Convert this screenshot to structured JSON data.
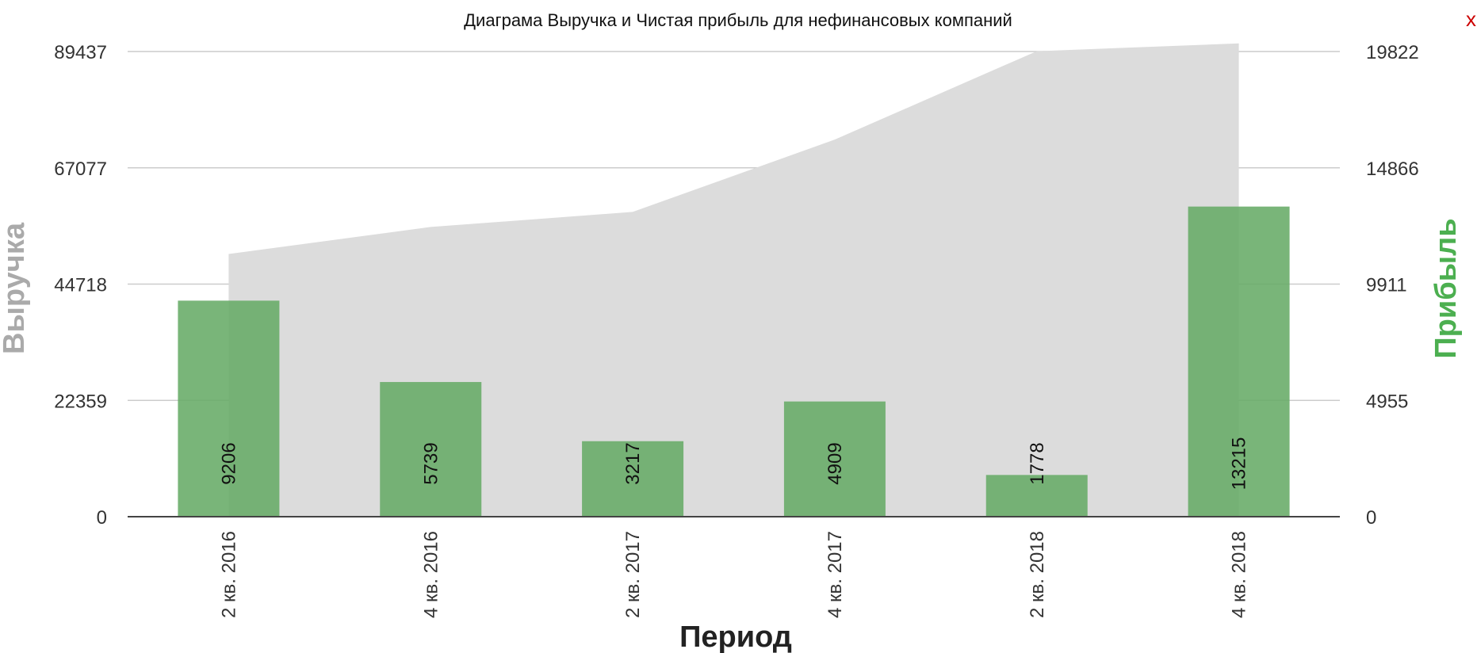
{
  "close_label": "x",
  "chart_data": {
    "type": "bar",
    "title": "Диаграма Выручка и Чистая прибыль для нефинансовых компаний",
    "xlabel": "Период",
    "ylabel_left": "Выручка",
    "ylabel_right": "Прибыль",
    "categories": [
      "2 кв. 2016",
      "4 кв. 2016",
      "2 кв. 2017",
      "4 кв. 2017",
      "2 кв. 2018",
      "4 кв. 2018"
    ],
    "y_left_ticks": [
      "0",
      "22359",
      "44718",
      "67077",
      "89437"
    ],
    "y_right_ticks": [
      "0",
      "4955",
      "9911",
      "14866",
      "19822"
    ],
    "y_left_range": [
      0,
      89437
    ],
    "y_right_range": [
      0,
      19822
    ],
    "series": [
      {
        "name": "Выручка",
        "type": "area",
        "axis": "left",
        "color": "#dcdcdc",
        "values": [
          50500,
          55700,
          58600,
          72500,
          89500,
          91000
        ]
      },
      {
        "name": "Прибыль",
        "type": "bar",
        "axis": "right",
        "color": "#66ab66",
        "values": [
          9206,
          5739,
          3217,
          4909,
          1778,
          13215
        ],
        "labels": [
          "9206",
          "5739",
          "3217",
          "4909",
          "1778",
          "13215"
        ]
      }
    ],
    "grid": true
  }
}
